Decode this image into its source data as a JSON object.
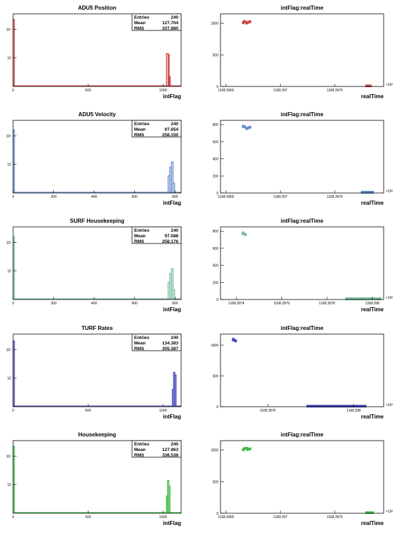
{
  "chart_data": [
    {
      "type": "histogram",
      "title": "ADU5 Position",
      "xlabel": "intFlag",
      "xlim": [
        0,
        1120
      ],
      "log_y": true,
      "ylim": [
        1,
        350
      ],
      "x_ticks": [
        0,
        500,
        1000
      ],
      "y_ticks": [
        {
          "value": 10,
          "label": "10"
        },
        {
          "value": 100,
          "label": "10²"
        }
      ],
      "color": "#cc4444",
      "stats": {
        "labels": [
          "Entries",
          "Mean",
          "RMS"
        ],
        "values": [
          "240",
          "127.704",
          "337.880"
        ]
      },
      "bins": [
        {
          "x": 0,
          "w": 8,
          "y": 220
        },
        {
          "x": 1022,
          "w": 12,
          "y": 14
        },
        {
          "x": 1034,
          "w": 6,
          "y": 13
        },
        {
          "x": 1040,
          "w": 6,
          "y": 2.2
        }
      ]
    },
    {
      "type": "scatter",
      "title": "intFlag:realTime",
      "xlabel": "realTime",
      "xlim": [
        1168.39645,
        1168.39795
      ],
      "ylim": [
        0,
        1150
      ],
      "x_ticks": [
        {
          "value": 1168.3965,
          "label": "1168.3965"
        },
        {
          "value": 1168.397,
          "label": "1168.397"
        },
        {
          "value": 1168.3975,
          "label": "1168.3975"
        },
        {
          "value": 1168.398,
          "label": "1168.398"
        }
      ],
      "y_ticks": [
        0,
        500,
        1000
      ],
      "exponent_label": "×10³",
      "color": "#cc4444",
      "points": [
        {
          "x": 1168.39667,
          "y": 1030
        },
        {
          "x": 1168.3967,
          "y": 1015
        },
        {
          "x": 1168.39672,
          "y": 1025
        },
        {
          "x": 1168.39666,
          "y": 1010
        },
        {
          "x": 1168.39669,
          "y": 1005
        }
      ],
      "bands": [
        {
          "x0": 1168.39778,
          "x1": 1168.39784,
          "y0": 0,
          "y1": 30
        }
      ]
    },
    {
      "type": "histogram",
      "title": "ADU5 Velocity",
      "xlabel": "intFlag",
      "xlim": [
        0,
        830
      ],
      "log_y": true,
      "ylim": [
        1,
        350
      ],
      "x_ticks": [
        0,
        200,
        400,
        600,
        800
      ],
      "y_ticks": [
        {
          "value": 10,
          "label": "10"
        },
        {
          "value": 100,
          "label": "10²"
        }
      ],
      "color": "#6688cc",
      "stats": {
        "labels": [
          "Entries",
          "Mean",
          "RMS"
        ],
        "values": [
          "240",
          "97.654",
          "258.150"
        ]
      },
      "bins": [
        {
          "x": 0,
          "w": 6,
          "y": 160
        },
        {
          "x": 766,
          "w": 8,
          "y": 4
        },
        {
          "x": 774,
          "w": 8,
          "y": 8
        },
        {
          "x": 782,
          "w": 8,
          "y": 12
        },
        {
          "x": 790,
          "w": 8,
          "y": 2.2
        }
      ]
    },
    {
      "type": "scatter",
      "title": "intFlag:realTime",
      "xlabel": "realTime",
      "xlim": [
        1168.39645,
        1168.39795
      ],
      "ylim": [
        0,
        850
      ],
      "x_ticks": [
        {
          "value": 1168.3965,
          "label": "1168.3965"
        },
        {
          "value": 1168.397,
          "label": "1168.397"
        },
        {
          "value": 1168.3975,
          "label": "1168.3975"
        },
        {
          "value": 1168.398,
          "label": "1168.398"
        }
      ],
      "y_ticks": [
        0,
        200,
        400,
        600,
        800
      ],
      "exponent_label": "×10³",
      "color": "#6688cc",
      "points": [
        {
          "x": 1168.39667,
          "y": 775
        },
        {
          "x": 1168.3967,
          "y": 760
        },
        {
          "x": 1168.39672,
          "y": 770
        },
        {
          "x": 1168.39666,
          "y": 780
        },
        {
          "x": 1168.39669,
          "y": 755
        }
      ],
      "bands": [
        {
          "x0": 1168.39774,
          "x1": 1168.39786,
          "y0": 0,
          "y1": 25
        }
      ]
    },
    {
      "type": "histogram",
      "title": "SURF Housekeeping",
      "xlabel": "intFlag",
      "xlim": [
        0,
        830
      ],
      "log_y": true,
      "ylim": [
        1,
        350
      ],
      "x_ticks": [
        0,
        200,
        400,
        600,
        800
      ],
      "y_ticks": [
        {
          "value": 10,
          "label": "10"
        },
        {
          "value": 100,
          "label": "10²"
        }
      ],
      "color": "#77bb99",
      "stats": {
        "labels": [
          "Entries",
          "Mean",
          "RMS"
        ],
        "values": [
          "240",
          "97.588",
          "258.176"
        ]
      },
      "bins": [
        {
          "x": 0,
          "w": 6,
          "y": 160
        },
        {
          "x": 766,
          "w": 8,
          "y": 4
        },
        {
          "x": 774,
          "w": 8,
          "y": 8
        },
        {
          "x": 782,
          "w": 8,
          "y": 12
        },
        {
          "x": 790,
          "w": 8,
          "y": 2.2
        }
      ]
    },
    {
      "type": "scatter",
      "title": "intFlag:realTime",
      "xlabel": "realTime",
      "xlim": [
        1168.39733,
        1168.39805
      ],
      "ylim": [
        0,
        850
      ],
      "x_ticks": [
        {
          "value": 1168.3974,
          "label": "1168.3974"
        },
        {
          "value": 1168.3976,
          "label": "1168.3976"
        },
        {
          "value": 1168.3978,
          "label": "1168.3978"
        },
        {
          "value": 1168.398,
          "label": "1168.398"
        }
      ],
      "y_ticks": [
        0,
        200,
        400,
        600,
        800
      ],
      "exponent_label": "×10³",
      "color": "#77bb99",
      "points": [
        {
          "x": 1168.39743,
          "y": 770
        },
        {
          "x": 1168.39744,
          "y": 760
        },
        {
          "x": 1168.39743,
          "y": 780
        }
      ],
      "bands": [
        {
          "x0": 1168.39788,
          "x1": 1168.39804,
          "y0": 0,
          "y1": 25
        }
      ]
    },
    {
      "type": "histogram",
      "title": "TURF Rates",
      "xlabel": "intFlag",
      "xlim": [
        0,
        1120
      ],
      "log_y": true,
      "ylim": [
        1,
        350
      ],
      "x_ticks": [
        0,
        500,
        1000
      ],
      "y_ticks": [
        {
          "value": 10,
          "label": "10"
        },
        {
          "value": 100,
          "label": "10²"
        }
      ],
      "color": "#4444bb",
      "stats": {
        "labels": [
          "Entries",
          "Mean",
          "RMS"
        ],
        "values": [
          "240",
          "134.383",
          "355.387"
        ]
      },
      "bins": [
        {
          "x": 0,
          "w": 8,
          "y": 200
        },
        {
          "x": 1062,
          "w": 8,
          "y": 4
        },
        {
          "x": 1070,
          "w": 8,
          "y": 16
        },
        {
          "x": 1078,
          "w": 8,
          "y": 13
        }
      ]
    },
    {
      "type": "scatter",
      "title": "intFlag:realTime",
      "xlabel": "realTime",
      "xlim": [
        1168.39738,
        1168.39814
      ],
      "ylim": [
        0,
        1180
      ],
      "x_ticks": [
        {
          "value": 1168.3976,
          "label": "1168.3976"
        },
        {
          "value": 1168.398,
          "label": "1168.398"
        }
      ],
      "y_ticks": [
        0,
        500,
        1000
      ],
      "exponent_label": "×10³",
      "color": "#4444bb",
      "points": [
        {
          "x": 1168.39744,
          "y": 1085
        },
        {
          "x": 1168.39745,
          "y": 1070
        },
        {
          "x": 1168.39744,
          "y": 1095
        }
      ],
      "bands": [
        {
          "x0": 1168.39778,
          "x1": 1168.39806,
          "y0": 0,
          "y1": 30
        }
      ]
    },
    {
      "type": "histogram",
      "title": "Housekeeping",
      "xlabel": "intFlag",
      "xlim": [
        0,
        1120
      ],
      "log_y": true,
      "ylim": [
        1,
        350
      ],
      "x_ticks": [
        0,
        500,
        1000
      ],
      "y_ticks": [
        {
          "value": 10,
          "label": "10"
        },
        {
          "value": 100,
          "label": "10²"
        }
      ],
      "color": "#44bb44",
      "stats": {
        "labels": [
          "Entries",
          "Mean",
          "RMS"
        ],
        "values": [
          "240",
          "127.963",
          "338.538"
        ]
      },
      "bins": [
        {
          "x": 0,
          "w": 8,
          "y": 220
        },
        {
          "x": 1022,
          "w": 8,
          "y": 4
        },
        {
          "x": 1030,
          "w": 8,
          "y": 14
        },
        {
          "x": 1038,
          "w": 8,
          "y": 9
        }
      ]
    },
    {
      "type": "scatter",
      "title": "intFlag:realTime",
      "xlabel": "realTime",
      "xlim": [
        1168.39645,
        1168.39795
      ],
      "ylim": [
        0,
        1150
      ],
      "x_ticks": [
        {
          "value": 1168.3965,
          "label": "1168.3965"
        },
        {
          "value": 1168.397,
          "label": "1168.397"
        },
        {
          "value": 1168.3975,
          "label": "1168.3975"
        },
        {
          "value": 1168.398,
          "label": "1168.398"
        }
      ],
      "y_ticks": [
        0,
        500,
        1000
      ],
      "exponent_label": "×10³",
      "color": "#44bb44",
      "points": [
        {
          "x": 1168.39667,
          "y": 1025
        },
        {
          "x": 1168.3967,
          "y": 1010
        },
        {
          "x": 1168.39672,
          "y": 1020
        },
        {
          "x": 1168.39666,
          "y": 1005
        },
        {
          "x": 1168.39669,
          "y": 1030
        }
      ],
      "bands": [
        {
          "x0": 1168.39778,
          "x1": 1168.39786,
          "y0": 0,
          "y1": 30
        }
      ]
    }
  ]
}
